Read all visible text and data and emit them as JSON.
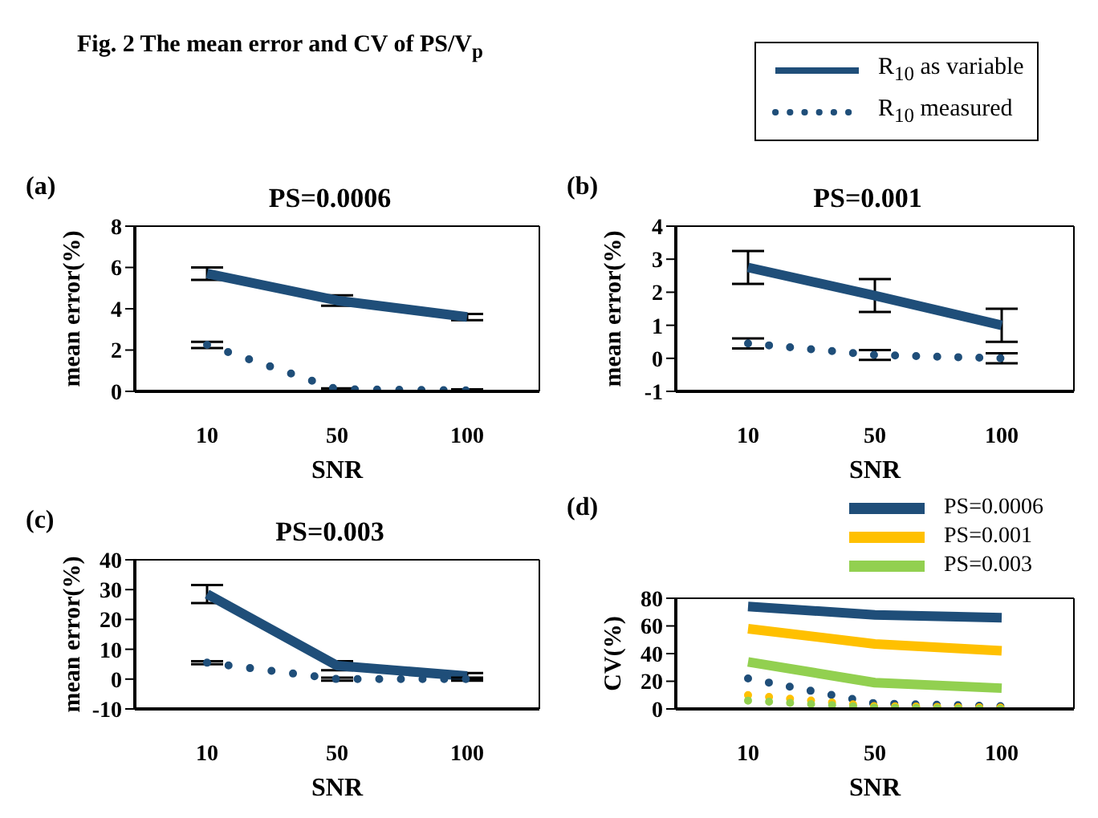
{
  "chart_data": [
    {
      "type": "other",
      "title": "Fig. 2 The mean error and CV of PS/V$_{p}$"
    },
    {
      "type": "line",
      "title": "PS=0.0006",
      "annotations": [
        "(a)"
      ],
      "xlabel": "SNR",
      "ylabel": "mean error(%)",
      "categories": [
        "10",
        "50",
        "100"
      ],
      "ylim": [
        0,
        8
      ],
      "yticks": [
        0,
        2,
        4,
        6,
        8
      ],
      "grid": false,
      "legend": "top right",
      "series": [
        {
          "name": "R$_{10}$ as variable",
          "color": "#1f4e79",
          "line_style": "solid",
          "values": [
            5.7,
            4.4,
            3.6
          ],
          "errors": [
            0.3,
            0.25,
            0.15
          ]
        },
        {
          "name": "R$_{10}$ measured",
          "color": "#1f4e79",
          "line_style": "dotted",
          "values": [
            2.25,
            0.1,
            0.05
          ],
          "errors": [
            0.15,
            0.05,
            0.05
          ]
        }
      ]
    },
    {
      "type": "line",
      "title": "PS=0.001",
      "annotations": [
        "(b)"
      ],
      "xlabel": "SNR",
      "ylabel": "mean error(%)",
      "categories": [
        "10",
        "50",
        "100"
      ],
      "ylim": [
        -1,
        4
      ],
      "yticks": [
        -1,
        0,
        1,
        2,
        3,
        4
      ],
      "grid": false,
      "series": [
        {
          "color": "#1f4e79",
          "line_style": "solid",
          "values": [
            2.75,
            1.9,
            1.0
          ],
          "errors": [
            0.5,
            0.5,
            0.5
          ]
        },
        {
          "color": "#1f4e79",
          "line_style": "dotted",
          "values": [
            0.45,
            0.1,
            0.0
          ],
          "errors": [
            0.15,
            0.15,
            0.15
          ]
        }
      ]
    },
    {
      "type": "line",
      "title": "PS=0.003",
      "annotations": [
        "(c)"
      ],
      "xlabel": "SNR",
      "ylabel": "mean error(%)",
      "categories": [
        "10",
        "50",
        "100"
      ],
      "ylim": [
        -10,
        40
      ],
      "yticks": [
        -10,
        0,
        10,
        20,
        30,
        40
      ],
      "grid": false,
      "series": [
        {
          "color": "#1f4e79",
          "line_style": "solid",
          "values": [
            28.5,
            4.5,
            1.0
          ],
          "errors": [
            3,
            1.5,
            1
          ]
        },
        {
          "color": "#1f4e79",
          "line_style": "dotted",
          "values": [
            5.5,
            0.0,
            0.0
          ],
          "errors": [
            0.5,
            0.5,
            0.5
          ]
        }
      ]
    },
    {
      "type": "line",
      "annotations": [
        "(d)"
      ],
      "xlabel": "SNR",
      "ylabel": "CV(%)",
      "categories": [
        "10",
        "50",
        "100"
      ],
      "ylim": [
        0,
        80
      ],
      "yticks": [
        0,
        20,
        40,
        60,
        80
      ],
      "grid": false,
      "legend": "top right",
      "series": [
        {
          "name": "PS=0.0006",
          "color": "#1f4e79",
          "line_style": "solid",
          "values": [
            74,
            68,
            66
          ]
        },
        {
          "name": "PS=0.001",
          "color": "#ffc000",
          "line_style": "solid",
          "values": [
            58,
            47,
            42
          ]
        },
        {
          "name": "PS=0.003",
          "color": "#92d050",
          "line_style": "solid",
          "values": [
            34,
            19,
            15
          ]
        },
        {
          "color": "#1f4e79",
          "line_style": "dotted",
          "values": [
            22,
            4,
            2
          ]
        },
        {
          "color": "#ffc000",
          "line_style": "dotted",
          "values": [
            10,
            2,
            1
          ]
        },
        {
          "color": "#92d050",
          "line_style": "dotted",
          "values": [
            6,
            1,
            0
          ]
        }
      ]
    }
  ]
}
